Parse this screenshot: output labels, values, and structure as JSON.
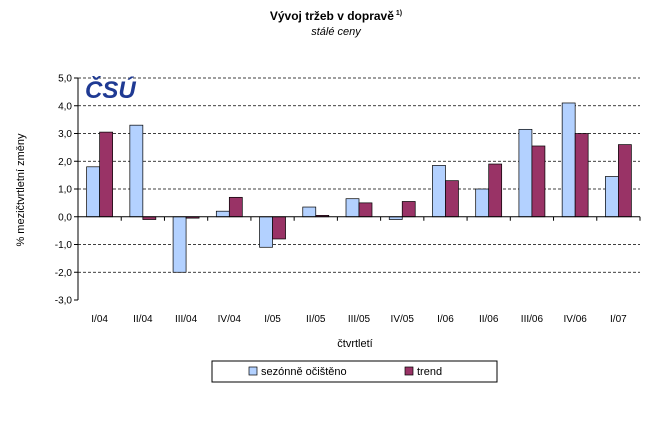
{
  "chart_data": {
    "type": "bar",
    "title": "Vývoj tržeb v dopravě",
    "title_sup": "1)",
    "subtitle": "stálé ceny",
    "xlabel": "čtvrtletí",
    "ylabel": "% mezičtvrtletní změny",
    "ylim": [
      -3.0,
      5.0
    ],
    "yticks": [
      "-3,0",
      "-2,0",
      "-1,0",
      "0,0",
      "1,0",
      "2,0",
      "3,0",
      "4,0",
      "5,0"
    ],
    "grid": "horizontal-dashed",
    "legend_position": "bottom",
    "categories": [
      "I/04",
      "II/04",
      "III/04",
      "IV/04",
      "I/05",
      "II/05",
      "III/05",
      "IV/05",
      "I/06",
      "II/06",
      "III/06",
      "IV/06",
      "I/07"
    ],
    "series": [
      {
        "name": "sezónně očištěno",
        "color": "#b3d1ff",
        "values": [
          1.8,
          3.3,
          -2.0,
          0.2,
          -1.1,
          0.35,
          0.65,
          -0.1,
          1.85,
          1.0,
          3.15,
          4.1,
          1.45
        ]
      },
      {
        "name": "trend",
        "color": "#993366",
        "values": [
          3.05,
          -0.1,
          -0.05,
          0.7,
          -0.8,
          0.05,
          0.5,
          0.55,
          1.3,
          1.9,
          2.55,
          3.0,
          2.6
        ]
      }
    ]
  },
  "logo": {
    "text": "ČSÚ",
    "color": "#1f3a93"
  }
}
